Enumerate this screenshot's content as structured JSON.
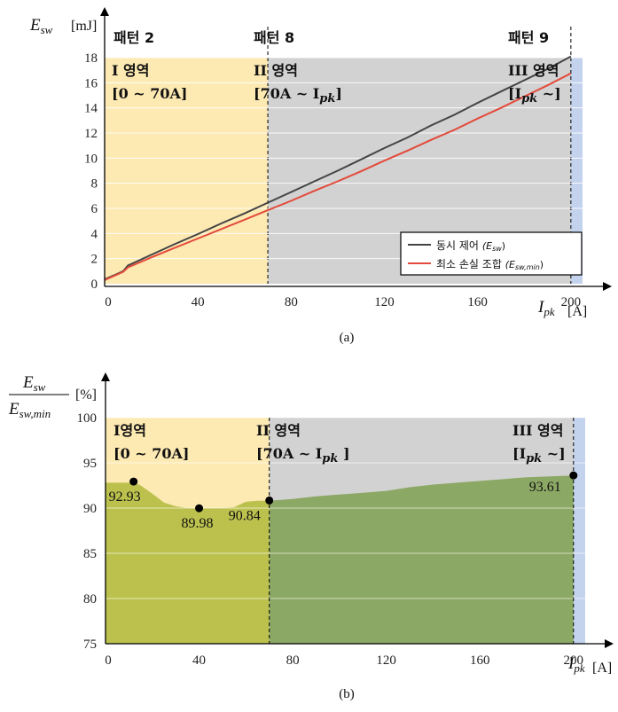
{
  "chart_data": [
    {
      "type": "line",
      "panel_label": "(a)",
      "ylabel_main": "E",
      "ylabel_sub": "sw",
      "ylabel_unit": "[mJ]",
      "xlabel_main": "I",
      "xlabel_sub": "pk",
      "xlabel_unit": "[A]",
      "xlim": [
        0,
        205
      ],
      "ylim": [
        0,
        18
      ],
      "xticks": [
        "0",
        "40",
        "80",
        "120",
        "160",
        "200"
      ],
      "yticks": [
        "0",
        "2",
        "4",
        "6",
        "8",
        "10",
        "12",
        "14",
        "16",
        "18"
      ],
      "patterns": [
        "패턴 2",
        "패턴 8",
        "패턴 9"
      ],
      "regions": [
        {
          "name": "I 영역",
          "range": "[0 ~ 70A]",
          "x": [
            0,
            70
          ],
          "color": "#fde9b2"
        },
        {
          "name": "II 영역",
          "range": "[70A ~ I",
          "range_sub": "pk",
          "range_end": "]",
          "x": [
            70,
            200
          ],
          "color": "#d2d2d2"
        },
        {
          "name": "III 영역",
          "range": "[I",
          "range_sub": "pk",
          "range_end": " ~]",
          "x": [
            200,
            205
          ],
          "color": "#c3d3ee"
        }
      ],
      "legend_position": "lower-right",
      "series": [
        {
          "name": "동시 제어",
          "name_math": "(E",
          "name_sub": "sw",
          "name_end": ")",
          "color": "#444444",
          "x": [
            0,
            5,
            8,
            10,
            20,
            30,
            40,
            50,
            60,
            70,
            80,
            90,
            100,
            110,
            120,
            130,
            140,
            150,
            160,
            170,
            180,
            190,
            200
          ],
          "y": [
            0.35,
            0.75,
            1.0,
            1.45,
            2.3,
            3.15,
            3.95,
            4.8,
            5.6,
            6.45,
            7.3,
            8.15,
            9.0,
            9.9,
            10.8,
            11.65,
            12.6,
            13.45,
            14.4,
            15.3,
            16.2,
            17.1,
            18.1
          ]
        },
        {
          "name": "최소 손실 조합",
          "name_math": "(E",
          "name_sub": "sw,min",
          "name_end": ")",
          "color": "#e34a3b",
          "x": [
            0,
            5,
            8,
            10,
            20,
            30,
            40,
            50,
            60,
            70,
            80,
            90,
            100,
            110,
            120,
            130,
            140,
            150,
            160,
            170,
            180,
            190,
            200
          ],
          "y": [
            0.3,
            0.7,
            0.95,
            1.3,
            2.1,
            2.85,
            3.6,
            4.35,
            5.1,
            5.85,
            6.6,
            7.4,
            8.15,
            8.95,
            9.8,
            10.6,
            11.45,
            12.25,
            13.15,
            14.0,
            14.9,
            15.8,
            16.75
          ]
        }
      ]
    },
    {
      "type": "area",
      "panel_label": "(b)",
      "ylabel_num_main": "E",
      "ylabel_num_sub": "sw",
      "ylabel_den_main": "E",
      "ylabel_den_sub": "sw,min",
      "ylabel_unit": "[%]",
      "xlabel_main": "I",
      "xlabel_sub": "pk",
      "xlabel_unit": "[A]",
      "xlim": [
        0,
        205
      ],
      "ylim": [
        75,
        100
      ],
      "xticks": [
        "0",
        "40",
        "80",
        "120",
        "160",
        "200"
      ],
      "yticks": [
        "75",
        "80",
        "85",
        "90",
        "95",
        "100"
      ],
      "regions": [
        {
          "name": "I영역",
          "range": "[0 ~ 70A]",
          "x": [
            0,
            70
          ],
          "color": "#fde9b2",
          "fill": "#bcc14e"
        },
        {
          "name": "II 영역",
          "range": "[70A ~ I",
          "range_sub": "pk",
          "range_end": " ]",
          "x": [
            70,
            200
          ],
          "color": "#d2d2d2",
          "fill": "#8ca865"
        },
        {
          "name": "III 영역",
          "range": "[I",
          "range_sub": "pk",
          "range_end": " ~]",
          "x": [
            200,
            205
          ],
          "color": "#c3d3ee"
        }
      ],
      "x": [
        0,
        5,
        10,
        12,
        15,
        20,
        25,
        30,
        35,
        40,
        45,
        50,
        55,
        60,
        65,
        70,
        75,
        80,
        90,
        100,
        110,
        120,
        130,
        140,
        150,
        160,
        170,
        180,
        190,
        200
      ],
      "y": [
        92.8,
        92.8,
        92.8,
        92.9,
        92.5,
        91.6,
        90.6,
        90.2,
        90.0,
        90.0,
        90.0,
        90.0,
        90.1,
        90.7,
        90.8,
        90.8,
        90.9,
        91.0,
        91.3,
        91.5,
        91.7,
        91.9,
        92.3,
        92.6,
        92.8,
        93.0,
        93.2,
        93.4,
        93.5,
        93.61
      ],
      "annotations": [
        {
          "x": 12,
          "y": 92.93,
          "label": "92.93"
        },
        {
          "x": 40,
          "y": 89.98,
          "label": "89.98"
        },
        {
          "x": 70,
          "y": 90.84,
          "label": "90.84"
        },
        {
          "x": 200,
          "y": 93.61,
          "label": "93.61"
        }
      ]
    }
  ]
}
